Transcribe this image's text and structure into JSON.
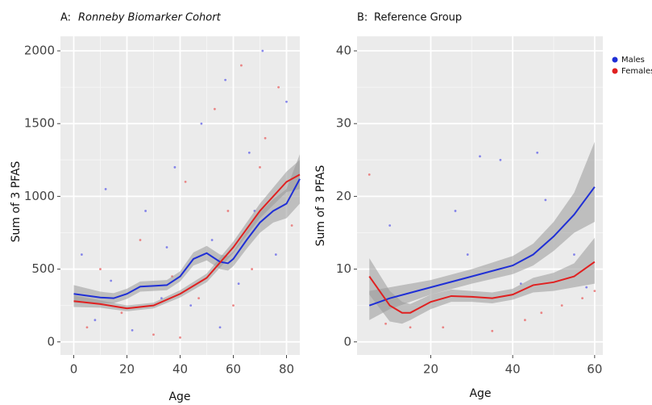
{
  "chart_data": [
    {
      "type": "line",
      "panel_label": "A:",
      "title": "Ronneby Biomarker Cohort",
      "x_label": "Age",
      "y_label": "Sum of 3 PFAS",
      "xlim": [
        -5,
        85
      ],
      "ylim": [
        -90,
        2100
      ],
      "xticks": [
        0,
        20,
        40,
        60,
        80
      ],
      "yticks": [
        0,
        500,
        1000,
        1500,
        2000
      ],
      "grid": true,
      "series": [
        {
          "color": "#1f2fd6",
          "x": [
            0,
            10,
            15,
            20,
            25,
            30,
            35,
            40,
            45,
            50,
            55,
            58,
            60,
            65,
            70,
            75,
            80,
            85
          ],
          "values": [
            330,
            305,
            300,
            330,
            380,
            385,
            390,
            450,
            570,
            610,
            550,
            540,
            570,
            700,
            820,
            900,
            950,
            1120
          ],
          "lower": [
            270,
            265,
            265,
            295,
            345,
            350,
            355,
            415,
            525,
            560,
            500,
            490,
            520,
            640,
            750,
            820,
            850,
            950
          ],
          "upper": [
            390,
            345,
            335,
            365,
            415,
            420,
            425,
            485,
            615,
            660,
            600,
            590,
            620,
            760,
            890,
            980,
            1050,
            1290
          ]
        },
        {
          "color": "#e02020",
          "x": [
            0,
            10,
            20,
            30,
            40,
            50,
            60,
            70,
            80,
            85
          ],
          "values": [
            280,
            260,
            230,
            250,
            330,
            440,
            650,
            900,
            1100,
            1150
          ],
          "lower": [
            240,
            235,
            210,
            230,
            305,
            410,
            610,
            850,
            1030,
            1050
          ],
          "upper": [
            320,
            285,
            250,
            270,
            355,
            470,
            690,
            950,
            1170,
            1250
          ]
        }
      ],
      "points": [
        {
          "color": "#6a6ae8",
          "x": [
            3,
            8,
            14,
            22,
            27,
            33,
            38,
            44,
            48,
            52,
            57,
            62,
            66,
            71,
            76,
            80,
            12,
            35,
            55,
            68
          ],
          "y": [
            600,
            150,
            420,
            80,
            900,
            300,
            1200,
            250,
            1500,
            700,
            1800,
            400,
            1300,
            2000,
            600,
            1650,
            1050,
            650,
            100,
            900
          ]
        },
        {
          "color": "#e86a6a",
          "x": [
            5,
            10,
            18,
            25,
            30,
            37,
            42,
            47,
            53,
            58,
            63,
            67,
            72,
            77,
            82,
            40,
            60,
            70
          ],
          "y": [
            100,
            500,
            200,
            700,
            50,
            450,
            1100,
            300,
            1600,
            900,
            1900,
            500,
            1400,
            1750,
            800,
            30,
            250,
            1200
          ]
        }
      ]
    },
    {
      "type": "line",
      "panel_label": "B:",
      "title": "Reference Group",
      "x_label": "Age",
      "y_label": "Sum of 3 PFAS",
      "xlim": [
        2,
        62
      ],
      "ylim": [
        -1.8,
        42
      ],
      "xticks": [
        20,
        40,
        60
      ],
      "yticks": [
        0,
        10,
        20,
        30,
        40
      ],
      "grid": true,
      "legend": "right",
      "series": [
        {
          "name": "Males",
          "color": "#1f2fd6",
          "x": [
            5,
            10,
            20,
            30,
            40,
            45,
            50,
            55,
            60
          ],
          "values": [
            5,
            6,
            7.5,
            9,
            10.5,
            12,
            14.5,
            17.5,
            21.3
          ],
          "lower": [
            3,
            4.5,
            6.5,
            8,
            9.3,
            10.5,
            12.5,
            15,
            16.5
          ],
          "upper": [
            7,
            7.5,
            8.5,
            10,
            11.8,
            13.5,
            16.5,
            20.5,
            27.5
          ]
        },
        {
          "name": "Females",
          "color": "#e02020",
          "x": [
            5,
            10,
            13,
            15,
            20,
            25,
            30,
            35,
            40,
            45,
            50,
            55,
            60
          ],
          "values": [
            9,
            5,
            4,
            4,
            5.5,
            6.3,
            6.2,
            6,
            6.5,
            7.8,
            8.2,
            9,
            11
          ],
          "lower": [
            6.5,
            2.8,
            2.5,
            3,
            4.5,
            5.5,
            5.5,
            5.3,
            5.8,
            6.8,
            7,
            7.5,
            8
          ],
          "upper": [
            11.5,
            7,
            5.5,
            5.2,
            6.5,
            7.2,
            7,
            6.8,
            7.3,
            8.8,
            9.5,
            10.8,
            14.3
          ]
        }
      ],
      "points": [
        {
          "color": "#6a6ae8",
          "x": [
            10,
            26,
            32,
            37,
            46,
            48,
            55,
            58,
            29,
            42
          ],
          "y": [
            16,
            18,
            25.5,
            25,
            26,
            19.5,
            12,
            7.5,
            12,
            8
          ]
        },
        {
          "color": "#e86a6a",
          "x": [
            5,
            9,
            23,
            35,
            43,
            47,
            52,
            57,
            60,
            15
          ],
          "y": [
            23,
            2.5,
            2,
            1.5,
            3,
            4,
            5,
            6,
            7,
            2
          ]
        }
      ]
    }
  ]
}
